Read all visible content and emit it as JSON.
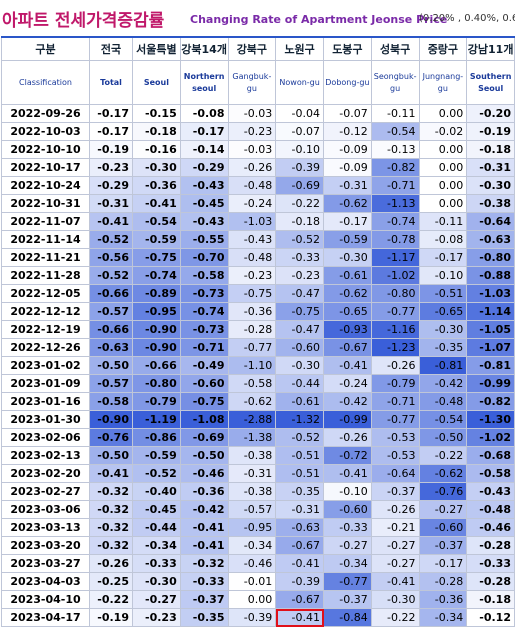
{
  "header": {
    "title_ko": "아파트 전세가격증감률",
    "title_en": "Changing Rate of Apartment Jeonse Price",
    "note": "(0.20% , 0.40%, 0.6"
  },
  "table": {
    "columns_ko": [
      "구분",
      "전국",
      "서울특별",
      "강북14개",
      "강북구",
      "노원구",
      "도봉구",
      "성북구",
      "중랑구",
      "강남11개"
    ],
    "columns_en": [
      "Classification",
      "Total",
      "Seoul",
      "Northern seoul",
      "Gangbuk-gu",
      "Nowon-gu",
      "Dobong-gu",
      "Seongbuk-gu",
      "Jungnang-gu",
      "Southern Seoul"
    ],
    "rows": [
      [
        "2022-09-26",
        "-0.17",
        "-0.15",
        "-0.08",
        "-0.03",
        "-0.04",
        "-0.07",
        "-0.11",
        "0.00",
        "-0.20"
      ],
      [
        "2022-10-03",
        "-0.17",
        "-0.18",
        "-0.17",
        "-0.23",
        "-0.07",
        "-0.12",
        "-0.54",
        "-0.02",
        "-0.19"
      ],
      [
        "2022-10-10",
        "-0.19",
        "-0.16",
        "-0.14",
        "-0.03",
        "-0.10",
        "-0.09",
        "-0.13",
        "0.00",
        "-0.18"
      ],
      [
        "2022-10-17",
        "-0.23",
        "-0.30",
        "-0.29",
        "-0.26",
        "-0.39",
        "-0.09",
        "-0.82",
        "0.00",
        "-0.31"
      ],
      [
        "2022-10-24",
        "-0.29",
        "-0.36",
        "-0.43",
        "-0.48",
        "-0.69",
        "-0.31",
        "-0.71",
        "0.00",
        "-0.30"
      ],
      [
        "2022-10-31",
        "-0.31",
        "-0.41",
        "-0.45",
        "-0.24",
        "-0.22",
        "-0.62",
        "-1.13",
        "0.00",
        "-0.38"
      ],
      [
        "2022-11-07",
        "-0.41",
        "-0.54",
        "-0.43",
        "-1.03",
        "-0.18",
        "-0.17",
        "-0.74",
        "-0.11",
        "-0.64"
      ],
      [
        "2022-11-14",
        "-0.52",
        "-0.59",
        "-0.55",
        "-0.43",
        "-0.52",
        "-0.59",
        "-0.78",
        "-0.08",
        "-0.63"
      ],
      [
        "2022-11-21",
        "-0.56",
        "-0.75",
        "-0.70",
        "-0.48",
        "-0.33",
        "-0.30",
        "-1.17",
        "-0.17",
        "-0.80"
      ],
      [
        "2022-11-28",
        "-0.52",
        "-0.74",
        "-0.58",
        "-0.23",
        "-0.23",
        "-0.61",
        "-1.02",
        "-0.10",
        "-0.88"
      ],
      [
        "2022-12-05",
        "-0.66",
        "-0.89",
        "-0.73",
        "-0.75",
        "-0.47",
        "-0.62",
        "-0.80",
        "-0.51",
        "-1.03"
      ],
      [
        "2022-12-12",
        "-0.57",
        "-0.95",
        "-0.74",
        "-0.36",
        "-0.75",
        "-0.65",
        "-0.77",
        "-0.65",
        "-1.14"
      ],
      [
        "2022-12-19",
        "-0.66",
        "-0.90",
        "-0.73",
        "-0.28",
        "-0.47",
        "-0.93",
        "-1.16",
        "-0.30",
        "-1.05"
      ],
      [
        "2022-12-26",
        "-0.63",
        "-0.90",
        "-0.71",
        "-0.77",
        "-0.60",
        "-0.67",
        "-1.23",
        "-0.35",
        "-1.07"
      ],
      [
        "2023-01-02",
        "-0.50",
        "-0.66",
        "-0.49",
        "-1.10",
        "-0.30",
        "-0.41",
        "-0.26",
        "-0.81",
        "-0.81"
      ],
      [
        "2023-01-09",
        "-0.57",
        "-0.80",
        "-0.60",
        "-0.58",
        "-0.44",
        "-0.24",
        "-0.79",
        "-0.42",
        "-0.99"
      ],
      [
        "2023-01-16",
        "-0.58",
        "-0.79",
        "-0.75",
        "-0.62",
        "-0.61",
        "-0.42",
        "-0.71",
        "-0.48",
        "-0.82"
      ],
      [
        "2023-01-30",
        "-0.90",
        "-1.19",
        "-1.08",
        "-2.88",
        "-1.32",
        "-0.99",
        "-0.77",
        "-0.54",
        "-1.30"
      ],
      [
        "2023-02-06",
        "-0.76",
        "-0.86",
        "-0.69",
        "-1.38",
        "-0.52",
        "-0.26",
        "-0.53",
        "-0.50",
        "-1.02"
      ],
      [
        "2023-02-13",
        "-0.50",
        "-0.59",
        "-0.50",
        "-0.38",
        "-0.51",
        "-0.72",
        "-0.53",
        "-0.22",
        "-0.68"
      ],
      [
        "2023-02-20",
        "-0.41",
        "-0.52",
        "-0.46",
        "-0.31",
        "-0.51",
        "-0.41",
        "-0.64",
        "-0.62",
        "-0.58"
      ],
      [
        "2023-02-27",
        "-0.32",
        "-0.40",
        "-0.36",
        "-0.38",
        "-0.35",
        "-0.10",
        "-0.37",
        "-0.76",
        "-0.43"
      ],
      [
        "2023-03-06",
        "-0.32",
        "-0.45",
        "-0.42",
        "-0.57",
        "-0.31",
        "-0.60",
        "-0.26",
        "-0.27",
        "-0.48"
      ],
      [
        "2023-03-13",
        "-0.32",
        "-0.44",
        "-0.41",
        "-0.95",
        "-0.63",
        "-0.33",
        "-0.21",
        "-0.60",
        "-0.46"
      ],
      [
        "2023-03-20",
        "-0.32",
        "-0.34",
        "-0.41",
        "-0.34",
        "-0.67",
        "-0.27",
        "-0.27",
        "-0.37",
        "-0.28"
      ],
      [
        "2023-03-27",
        "-0.26",
        "-0.33",
        "-0.32",
        "-0.46",
        "-0.41",
        "-0.34",
        "-0.27",
        "-0.17",
        "-0.33"
      ],
      [
        "2023-04-03",
        "-0.25",
        "-0.30",
        "-0.33",
        "-0.01",
        "-0.39",
        "-0.77",
        "-0.41",
        "-0.28",
        "-0.28"
      ],
      [
        "2023-04-10",
        "-0.22",
        "-0.27",
        "-0.37",
        "0.00",
        "-0.67",
        "-0.37",
        "-0.30",
        "-0.36",
        "-0.18"
      ],
      [
        "2023-04-17",
        "-0.19",
        "-0.23",
        "-0.35",
        "-0.39",
        "-0.41",
        "-0.84",
        "-0.22",
        "-0.34",
        "-0.12"
      ]
    ]
  }
}
